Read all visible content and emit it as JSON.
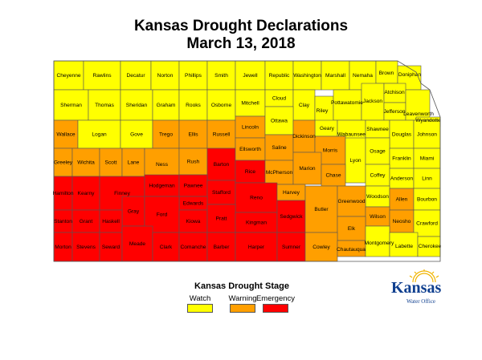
{
  "title": "Kansas Drought Declarations",
  "subtitle": "March 13, 2018",
  "colors": {
    "watch": "#ffff00",
    "warning": "#ff9f00",
    "emergency": "#ff0000",
    "border": "#555555"
  },
  "legend": {
    "title": "Kansas Drought Stage",
    "items": [
      {
        "label": "Watch",
        "stage": "watch"
      },
      {
        "label": "Warning",
        "stage": "warning"
      },
      {
        "label": "Emergency",
        "stage": "emergency"
      }
    ]
  },
  "logo": {
    "word": "Kansas",
    "sub": "Water Office"
  },
  "counties": [
    {
      "name": "Cheyenne",
      "stage": "watch"
    },
    {
      "name": "Rawlins",
      "stage": "watch"
    },
    {
      "name": "Decatur",
      "stage": "watch"
    },
    {
      "name": "Norton",
      "stage": "watch"
    },
    {
      "name": "Phillips",
      "stage": "watch"
    },
    {
      "name": "Smith",
      "stage": "watch"
    },
    {
      "name": "Jewell",
      "stage": "watch"
    },
    {
      "name": "Republic",
      "stage": "watch"
    },
    {
      "name": "Washington",
      "stage": "watch"
    },
    {
      "name": "Marshall",
      "stage": "watch"
    },
    {
      "name": "Nemaha",
      "stage": "watch"
    },
    {
      "name": "Brown",
      "stage": "watch"
    },
    {
      "name": "Doniphan",
      "stage": "watch"
    },
    {
      "name": "Sherman",
      "stage": "watch"
    },
    {
      "name": "Thomas",
      "stage": "watch"
    },
    {
      "name": "Sheridan",
      "stage": "watch"
    },
    {
      "name": "Graham",
      "stage": "watch"
    },
    {
      "name": "Rooks",
      "stage": "watch"
    },
    {
      "name": "Osborne",
      "stage": "watch"
    },
    {
      "name": "Mitchell",
      "stage": "watch"
    },
    {
      "name": "Cloud",
      "stage": "watch"
    },
    {
      "name": "Clay",
      "stage": "watch"
    },
    {
      "name": "Riley",
      "stage": "watch"
    },
    {
      "name": "Pottawatomie",
      "stage": "watch"
    },
    {
      "name": "Jackson",
      "stage": "watch"
    },
    {
      "name": "Atchison",
      "stage": "watch"
    },
    {
      "name": "Jefferson",
      "stage": "watch"
    },
    {
      "name": "Leavenworth",
      "stage": "watch"
    },
    {
      "name": "Wyandotte",
      "stage": "watch"
    },
    {
      "name": "Wallace",
      "stage": "warning"
    },
    {
      "name": "Logan",
      "stage": "watch"
    },
    {
      "name": "Gove",
      "stage": "watch"
    },
    {
      "name": "Trego",
      "stage": "warning"
    },
    {
      "name": "Ellis",
      "stage": "warning"
    },
    {
      "name": "Russell",
      "stage": "warning"
    },
    {
      "name": "Lincoln",
      "stage": "warning"
    },
    {
      "name": "Ottawa",
      "stage": "watch"
    },
    {
      "name": "Geary",
      "stage": "watch"
    },
    {
      "name": "Wabaunsee",
      "stage": "watch"
    },
    {
      "name": "Shawnee",
      "stage": "watch"
    },
    {
      "name": "Douglas",
      "stage": "watch"
    },
    {
      "name": "Johnson",
      "stage": "watch"
    },
    {
      "name": "Greeley",
      "stage": "warning"
    },
    {
      "name": "Wichita",
      "stage": "warning"
    },
    {
      "name": "Scott",
      "stage": "warning"
    },
    {
      "name": "Lane",
      "stage": "warning"
    },
    {
      "name": "Ness",
      "stage": "warning"
    },
    {
      "name": "Rush",
      "stage": "warning"
    },
    {
      "name": "Barton",
      "stage": "emergency"
    },
    {
      "name": "Ellsworth",
      "stage": "warning"
    },
    {
      "name": "Saline",
      "stage": "warning"
    },
    {
      "name": "Dickinson",
      "stage": "warning"
    },
    {
      "name": "Morris",
      "stage": "warning"
    },
    {
      "name": "Lyon",
      "stage": "watch"
    },
    {
      "name": "Osage",
      "stage": "watch"
    },
    {
      "name": "Franklin",
      "stage": "watch"
    },
    {
      "name": "Miami",
      "stage": "watch"
    },
    {
      "name": "Hamilton",
      "stage": "emergency"
    },
    {
      "name": "Kearny",
      "stage": "emergency"
    },
    {
      "name": "Finney",
      "stage": "emergency"
    },
    {
      "name": "Hodgeman",
      "stage": "emergency"
    },
    {
      "name": "Pawnee",
      "stage": "emergency"
    },
    {
      "name": "Stafford",
      "stage": "emergency"
    },
    {
      "name": "Rice",
      "stage": "emergency"
    },
    {
      "name": "McPherson",
      "stage": "warning"
    },
    {
      "name": "Marion",
      "stage": "warning"
    },
    {
      "name": "Chase",
      "stage": "warning"
    },
    {
      "name": "Coffey",
      "stage": "watch"
    },
    {
      "name": "Anderson",
      "stage": "watch"
    },
    {
      "name": "Linn",
      "stage": "watch"
    },
    {
      "name": "Edwards",
      "stage": "emergency"
    },
    {
      "name": "Gray",
      "stage": "emergency"
    },
    {
      "name": "Ford",
      "stage": "emergency"
    },
    {
      "name": "Reno",
      "stage": "emergency"
    },
    {
      "name": "Harvey",
      "stage": "warning"
    },
    {
      "name": "Woodson",
      "stage": "watch"
    },
    {
      "name": "Allen",
      "stage": "warning"
    },
    {
      "name": "Bourbon",
      "stage": "watch"
    },
    {
      "name": "Stanton",
      "stage": "emergency"
    },
    {
      "name": "Grant",
      "stage": "emergency"
    },
    {
      "name": "Haskell",
      "stage": "emergency"
    },
    {
      "name": "Kiowa",
      "stage": "emergency"
    },
    {
      "name": "Pratt",
      "stage": "emergency"
    },
    {
      "name": "Kingman",
      "stage": "emergency"
    },
    {
      "name": "Sedgwick",
      "stage": "emergency"
    },
    {
      "name": "Butler",
      "stage": "warning"
    },
    {
      "name": "Greenwood",
      "stage": "warning"
    },
    {
      "name": "Wilson",
      "stage": "warning"
    },
    {
      "name": "Neosho",
      "stage": "warning"
    },
    {
      "name": "Crawford",
      "stage": "watch"
    },
    {
      "name": "Elk",
      "stage": "warning"
    },
    {
      "name": "Morton",
      "stage": "emergency"
    },
    {
      "name": "Stevens",
      "stage": "emergency"
    },
    {
      "name": "Seward",
      "stage": "emergency"
    },
    {
      "name": "Meade",
      "stage": "emergency"
    },
    {
      "name": "Clark",
      "stage": "emergency"
    },
    {
      "name": "Comanche",
      "stage": "emergency"
    },
    {
      "name": "Barber",
      "stage": "emergency"
    },
    {
      "name": "Harper",
      "stage": "emergency"
    },
    {
      "name": "Sumner",
      "stage": "emergency"
    },
    {
      "name": "Cowley",
      "stage": "warning"
    },
    {
      "name": "Chautauqua",
      "stage": "warning"
    },
    {
      "name": "Montgomery",
      "stage": "watch"
    },
    {
      "name": "Labette",
      "stage": "watch"
    },
    {
      "name": "Cherokee",
      "stage": "watch"
    }
  ]
}
